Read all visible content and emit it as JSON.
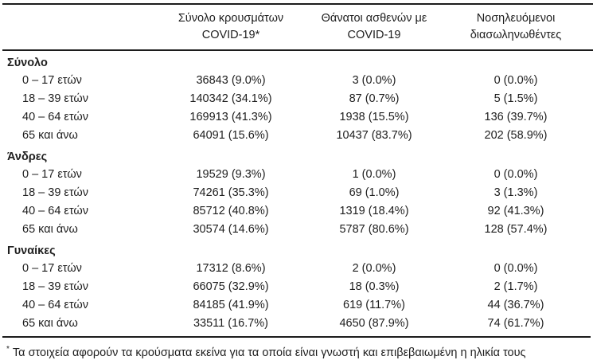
{
  "colors": {
    "text": "#1e1e1e",
    "rule": "#1c1c1c",
    "background": "#ffffff"
  },
  "table": {
    "columns": [
      {
        "lines": [
          "",
          ""
        ]
      },
      {
        "lines": [
          "Σύνολο κρουσμάτων",
          "COVID-19*"
        ]
      },
      {
        "lines": [
          "Θάνατοι ασθενών με",
          "COVID-19"
        ]
      },
      {
        "lines": [
          "Νοσηλευόμενοι",
          "διασωληνωθέντες"
        ]
      }
    ],
    "sections": [
      {
        "label": "Σύνολο",
        "rows": [
          {
            "age": "0 – 17 ετών",
            "cases": "36843 (9.0%)",
            "deaths": "3 (0.0%)",
            "intubated": "0 (0.0%)"
          },
          {
            "age": "18 – 39 ετών",
            "cases": "140342 (34.1%)",
            "deaths": "87 (0.7%)",
            "intubated": "5 (1.5%)"
          },
          {
            "age": "40 – 64 ετών",
            "cases": "169913 (41.3%)",
            "deaths": "1938 (15.5%)",
            "intubated": "136 (39.7%)"
          },
          {
            "age": "65 και άνω",
            "cases": "64091 (15.6%)",
            "deaths": "10437 (83.7%)",
            "intubated": "202 (58.9%)"
          }
        ]
      },
      {
        "label": "Άνδρες",
        "rows": [
          {
            "age": "0 – 17 ετών",
            "cases": "19529 (9.3%)",
            "deaths": "1 (0.0%)",
            "intubated": "0 (0.0%)"
          },
          {
            "age": "18 – 39 ετών",
            "cases": "74261 (35.3%)",
            "deaths": "69 (1.0%)",
            "intubated": "3 (1.3%)"
          },
          {
            "age": "40 – 64 ετών",
            "cases": "85712 (40.8%)",
            "deaths": "1319 (18.4%)",
            "intubated": "92 (41.3%)"
          },
          {
            "age": "65 και άνω",
            "cases": "30574 (14.6%)",
            "deaths": "5787 (80.6%)",
            "intubated": "128 (57.4%)"
          }
        ]
      },
      {
        "label": "Γυναίκες",
        "rows": [
          {
            "age": "0 – 17 ετών",
            "cases": "17312 (8.6%)",
            "deaths": "2 (0.0%)",
            "intubated": "0 (0.0%)"
          },
          {
            "age": "18 – 39 ετών",
            "cases": "66075 (32.9%)",
            "deaths": "18 (0.3%)",
            "intubated": "2 (1.7%)"
          },
          {
            "age": "40 – 64 ετών",
            "cases": "84185 (41.9%)",
            "deaths": "619 (11.7%)",
            "intubated": "44 (36.7%)"
          },
          {
            "age": "65 και άνω",
            "cases": "33511 (16.7%)",
            "deaths": "4650 (87.9%)",
            "intubated": "74 (61.7%)"
          }
        ]
      }
    ]
  },
  "footnote": {
    "marker": "*",
    "text": "Τα στοιχεία αφορούν τα κρούσματα εκείνα για τα οποία είναι γνωστή και επιβεβαιωμένη η ηλικία τους"
  }
}
